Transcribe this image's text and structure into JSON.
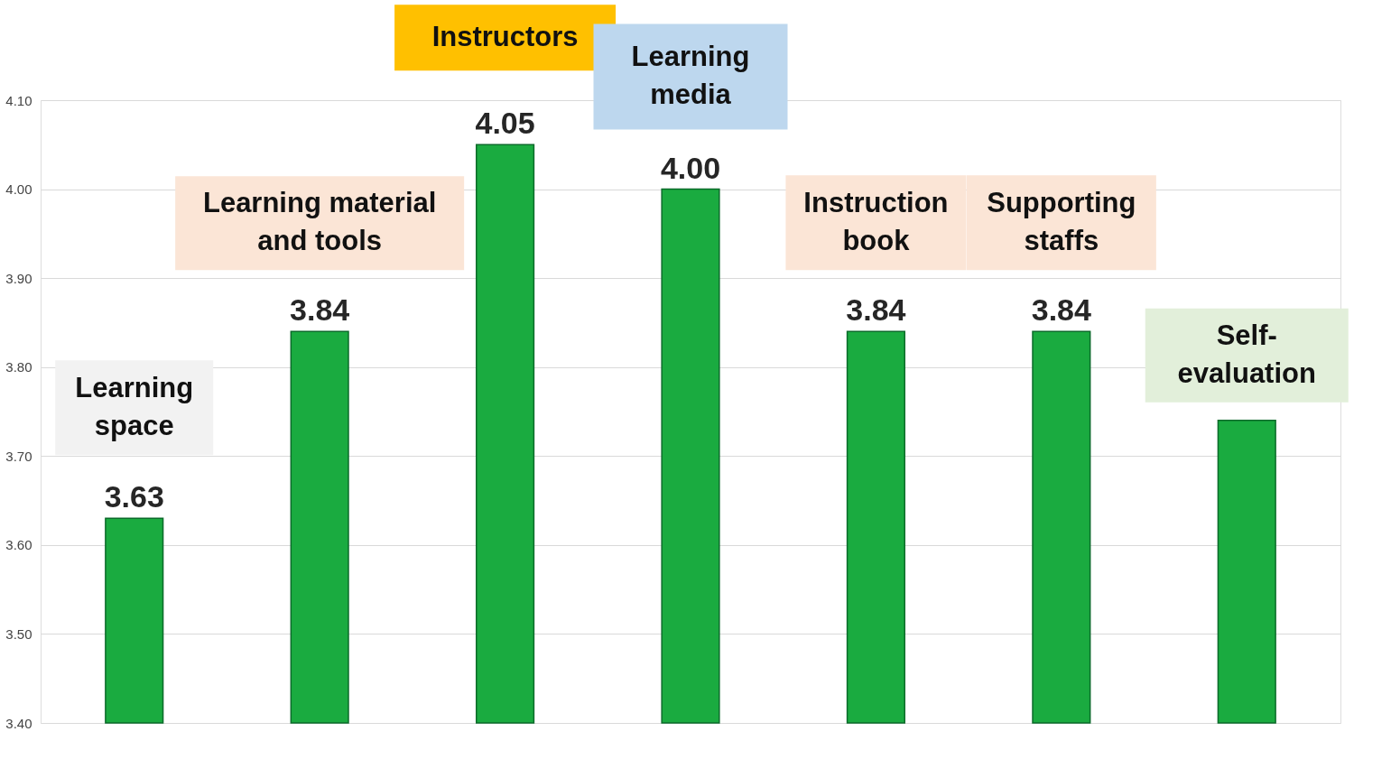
{
  "chart_data": {
    "type": "bar",
    "categories": [
      "Learning\nspace",
      "Learning material\nand tools",
      "Instructors",
      "Learning\nmedia",
      "Instruction\nbook",
      "Supporting\nstaffs",
      "Self-\nevaluation"
    ],
    "values": [
      3.63,
      3.84,
      4.05,
      4.0,
      3.84,
      3.84,
      3.74
    ],
    "value_labels": [
      "3.63",
      "3.84",
      "4.05",
      "4.00",
      "3.84",
      "3.84",
      null
    ],
    "color": "#1aab40",
    "ylim": [
      3.4,
      4.1
    ],
    "yticks": [
      {
        "value": 3.4,
        "label": "3.40"
      },
      {
        "value": 3.5,
        "label": "3.50"
      },
      {
        "value": 3.6,
        "label": "3.60"
      },
      {
        "value": 3.7,
        "label": "3.70"
      },
      {
        "value": 3.8,
        "label": "3.80"
      },
      {
        "value": 3.9,
        "label": "3.90"
      },
      {
        "value": 4.0,
        "label": "4.00"
      },
      {
        "value": 4.1,
        "label": "4.10"
      }
    ],
    "grid": "y",
    "tick_labels": "y"
  }
}
